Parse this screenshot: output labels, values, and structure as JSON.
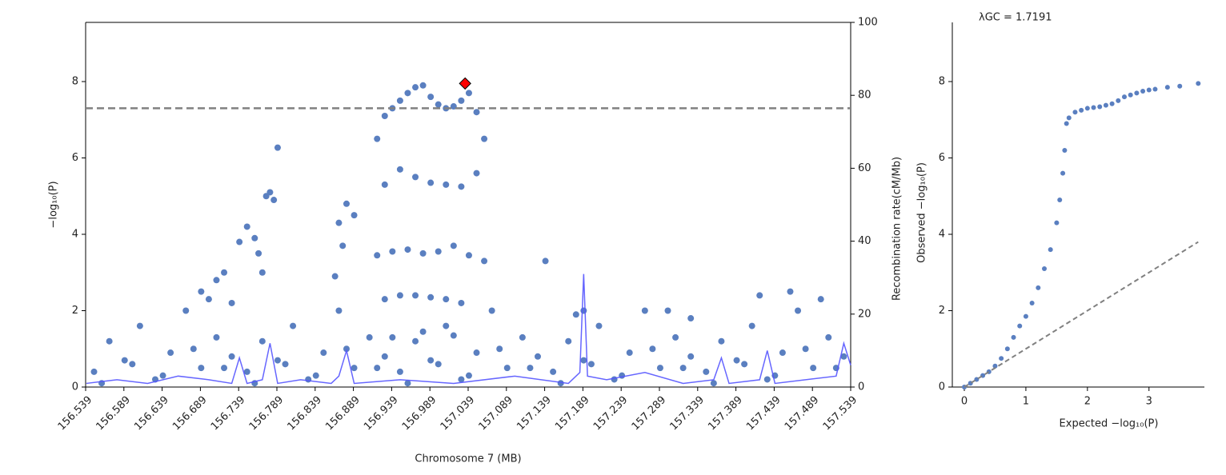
{
  "chart_data": [
    {
      "type": "scatter",
      "xlabel": "Chromosome 7 (MB)",
      "ylabel": "−log₁₀(P)",
      "y2label": "Recombination rate(cM/Mb)",
      "xlim": [
        156.539,
        157.539
      ],
      "ylim": [
        0,
        9.55
      ],
      "y2lim": [
        0,
        100
      ],
      "xticks": [
        156.539,
        156.589,
        156.639,
        156.689,
        156.739,
        156.789,
        156.839,
        156.889,
        156.939,
        156.989,
        157.039,
        157.089,
        157.139,
        157.189,
        157.239,
        157.289,
        157.339,
        157.389,
        157.439,
        157.489,
        157.539
      ],
      "yticks": [
        0,
        2,
        4,
        6,
        8
      ],
      "y2ticks": [
        0,
        20,
        40,
        60,
        80,
        100
      ],
      "hline": 7.3,
      "hline_color": "#808080",
      "series": [
        {
          "type": "scatter",
          "color": "#5a7fc0",
          "x": [
            156.55,
            156.57,
            156.59,
            156.61,
            156.63,
            156.65,
            156.67,
            156.69,
            156.71,
            156.73,
            156.75,
            156.77,
            156.79,
            156.81,
            156.83,
            156.85,
            156.87,
            156.89,
            156.91,
            156.93,
            156.95,
            156.97,
            156.99,
            157.01,
            157.03,
            157.05,
            157.07,
            157.09,
            157.11,
            157.13,
            157.15,
            157.17,
            157.19,
            157.21,
            157.23,
            157.25,
            157.27,
            157.29,
            157.31,
            157.33,
            157.35,
            157.37,
            157.39,
            157.41,
            157.43,
            157.45,
            157.47,
            157.49,
            157.51,
            157.53,
            156.56,
            156.6,
            156.64,
            156.68,
            156.72,
            156.76,
            156.8,
            156.84,
            156.88,
            156.92,
            156.96,
            157.0,
            157.04,
            157.08,
            157.12,
            157.16,
            157.2,
            157.24,
            157.28,
            157.32,
            157.36,
            157.4,
            157.44,
            157.48,
            157.52,
            156.69,
            156.7,
            156.71,
            156.72,
            156.73,
            156.74,
            156.75,
            156.76,
            156.765,
            156.77,
            156.775,
            156.78,
            156.785,
            156.79,
            156.87,
            156.88,
            156.89,
            156.875,
            156.865,
            156.92,
            156.93,
            156.94,
            156.95,
            156.96,
            156.97,
            156.98,
            156.99,
            157.0,
            157.01,
            157.02,
            157.03,
            157.04,
            157.05,
            157.06,
            156.93,
            156.95,
            156.97,
            156.99,
            157.01,
            157.03,
            157.05,
            156.92,
            156.94,
            156.96,
            156.98,
            157.0,
            157.02,
            157.04,
            157.06,
            156.93,
            156.95,
            156.97,
            156.99,
            157.01,
            157.03,
            156.94,
            156.98,
            157.02,
            157.14,
            157.18,
            157.19,
            157.3,
            157.33,
            157.42,
            157.46,
            157.5
          ],
          "values": [
            0.4,
            1.2,
            0.7,
            1.6,
            0.2,
            0.9,
            2.0,
            0.5,
            1.3,
            0.8,
            0.4,
            1.2,
            0.7,
            1.6,
            0.2,
            0.9,
            2.0,
            0.5,
            1.3,
            0.8,
            0.4,
            1.2,
            0.7,
            1.6,
            0.2,
            0.9,
            2.0,
            0.5,
            1.3,
            0.8,
            0.4,
            1.2,
            0.7,
            1.6,
            0.2,
            0.9,
            2.0,
            0.5,
            1.3,
            0.8,
            0.4,
            1.2,
            0.7,
            1.6,
            0.2,
            0.9,
            2.0,
            0.5,
            1.3,
            0.8,
            0.1,
            0.6,
            0.3,
            1.0,
            0.5,
            0.1,
            0.6,
            0.3,
            1.0,
            0.5,
            0.1,
            0.6,
            0.3,
            1.0,
            0.5,
            0.1,
            0.6,
            0.3,
            1.0,
            0.5,
            0.1,
            0.6,
            0.3,
            1.0,
            0.5,
            2.5,
            2.3,
            2.8,
            3.0,
            2.2,
            3.8,
            4.2,
            3.9,
            3.5,
            3.0,
            5.0,
            5.1,
            4.9,
            6.27,
            4.3,
            4.8,
            4.5,
            3.7,
            2.9,
            6.5,
            7.1,
            7.3,
            7.5,
            7.7,
            7.85,
            7.9,
            7.6,
            7.4,
            7.3,
            7.35,
            7.5,
            7.7,
            7.2,
            6.5,
            5.3,
            5.7,
            5.5,
            5.35,
            5.3,
            5.25,
            5.6,
            3.45,
            3.55,
            3.6,
            3.5,
            3.55,
            3.7,
            3.45,
            3.3,
            2.3,
            2.4,
            2.4,
            2.35,
            2.3,
            2.2,
            1.3,
            1.45,
            1.35,
            3.3,
            1.9,
            2.0,
            2.0,
            1.8,
            2.4,
            2.5,
            2.3
          ]
        },
        {
          "type": "line",
          "axis": "y2",
          "color": "#5555ff",
          "x": [
            156.54,
            156.58,
            156.62,
            156.66,
            156.7,
            156.73,
            156.74,
            156.75,
            156.77,
            156.78,
            156.79,
            156.82,
            156.86,
            156.87,
            156.88,
            156.89,
            156.95,
            157.02,
            157.1,
            157.17,
            157.185,
            157.19,
            157.195,
            157.22,
            157.27,
            157.32,
            157.36,
            157.37,
            157.38,
            157.42,
            157.43,
            157.44,
            157.48,
            157.52,
            157.53,
            157.539
          ],
          "values": [
            1,
            2,
            1,
            3,
            2,
            1,
            8,
            1,
            2,
            12,
            1,
            2,
            1,
            3,
            10,
            1,
            2,
            1,
            3,
            1,
            4,
            31,
            3,
            2,
            4,
            1,
            2,
            8,
            1,
            2,
            10,
            1,
            2,
            3,
            12,
            6
          ]
        },
        {
          "type": "scatter",
          "marker": "diamond",
          "color": "#ff0000",
          "x": [
            157.035
          ],
          "values": [
            7.95
          ]
        }
      ]
    },
    {
      "type": "scatter",
      "title": "λGC = 1.7191",
      "xlabel": "Expected −log₁₀(P)",
      "ylabel": "Observed −log₁₀(P)",
      "xlim": [
        -0.195,
        3.9
      ],
      "ylim": [
        0,
        9.55
      ],
      "xticks": [
        0,
        1,
        2,
        3
      ],
      "yticks": [
        0,
        2,
        4,
        6,
        8
      ],
      "diagonal": true,
      "diagonal_color": "#808080",
      "series": [
        {
          "type": "scatter",
          "color": "#5a7fc0",
          "x": [
            0,
            0.1,
            0.2,
            0.3,
            0.4,
            0.5,
            0.6,
            0.7,
            0.8,
            0.9,
            1.0,
            1.1,
            1.2,
            1.3,
            1.4,
            1.5,
            1.55,
            1.6,
            1.63,
            1.66,
            1.7,
            1.8,
            1.9,
            2.0,
            2.1,
            2.2,
            2.3,
            2.4,
            2.5,
            2.6,
            2.7,
            2.8,
            2.9,
            3.0,
            3.1,
            3.3,
            3.5,
            3.8
          ],
          "values": [
            0,
            0.1,
            0.2,
            0.3,
            0.4,
            0.55,
            0.75,
            1.0,
            1.3,
            1.6,
            1.85,
            2.2,
            2.6,
            3.1,
            3.6,
            4.3,
            4.9,
            5.6,
            6.2,
            6.9,
            7.05,
            7.2,
            7.25,
            7.3,
            7.32,
            7.34,
            7.38,
            7.42,
            7.5,
            7.6,
            7.65,
            7.7,
            7.75,
            7.78,
            7.8,
            7.85,
            7.88,
            7.95
          ]
        }
      ]
    }
  ]
}
